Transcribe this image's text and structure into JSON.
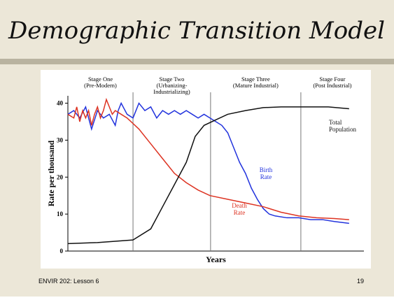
{
  "header": {
    "title": "Demographic Transition Model"
  },
  "chart_data": {
    "type": "line",
    "xlabel": "Years",
    "ylabel": "Rate per thousand",
    "xlim": [
      0,
      100
    ],
    "ylim": [
      0,
      42
    ],
    "yticks": [
      0,
      10,
      20,
      30,
      40
    ],
    "stages": [
      {
        "lines": [
          "Stage One",
          "(Pre-Modern)"
        ],
        "end": 22
      },
      {
        "lines": [
          "Stage Two",
          "(Urbanizing-",
          "Industrializing)"
        ],
        "end": 48.2
      },
      {
        "lines": [
          "Stage Three",
          "(Mature Industrial)"
        ],
        "end": 78.7
      },
      {
        "lines": [
          "Stage Four",
          "(Post Industrial)"
        ]
      }
    ],
    "series": [
      {
        "name": [
          "Birth",
          "Rate"
        ],
        "color": "#2233dd",
        "x": [
          0,
          2,
          4,
          6,
          8,
          10,
          12,
          14,
          16,
          17,
          18,
          20,
          22,
          24,
          26,
          28,
          30,
          32,
          34,
          36,
          38,
          40,
          42,
          44,
          46,
          48,
          50,
          52,
          54,
          56,
          58,
          60,
          62,
          64,
          66,
          68,
          70,
          74,
          78,
          82,
          86,
          90,
          95
        ],
        "values": [
          37,
          38,
          36,
          39,
          33,
          38,
          36,
          37,
          34,
          38,
          40,
          37,
          36,
          40,
          38,
          39,
          36,
          38,
          37,
          38,
          37,
          38,
          37,
          36,
          37,
          36,
          35,
          34,
          32,
          28,
          24,
          21,
          17,
          14,
          11.5,
          10,
          9.5,
          9,
          9,
          8.5,
          8.5,
          8,
          7.5
        ]
      },
      {
        "name": [
          "Death",
          "Rate"
        ],
        "color": "#dd3322",
        "x": [
          0,
          2,
          3,
          4,
          5,
          6,
          7,
          8,
          9,
          10,
          11,
          12,
          13,
          14,
          15,
          16,
          18,
          20,
          24,
          28,
          32,
          36,
          40,
          44,
          48,
          54,
          60,
          66,
          72,
          78,
          84,
          90,
          95
        ],
        "values": [
          37,
          36,
          39,
          35,
          38,
          36,
          38,
          34,
          37,
          39,
          36,
          38,
          41,
          39,
          37,
          38,
          37,
          36,
          33,
          29,
          25,
          21,
          18.5,
          16.5,
          15,
          14,
          13,
          12,
          10.5,
          9.5,
          9,
          8.8,
          8.5
        ]
      },
      {
        "name": [
          "Total",
          "Population"
        ],
        "color": "#111111",
        "x": [
          0,
          10,
          22,
          28,
          32,
          36,
          40,
          43,
          46,
          50,
          54,
          60,
          66,
          72,
          80,
          88,
          95
        ],
        "values": [
          2,
          2.3,
          3,
          6,
          12,
          18,
          24,
          31,
          34,
          35.5,
          37,
          38,
          38.8,
          39,
          39,
          39,
          38.5
        ]
      }
    ]
  },
  "footer": {
    "left": "ENVIR 202: Lesson 6",
    "right": "19"
  }
}
